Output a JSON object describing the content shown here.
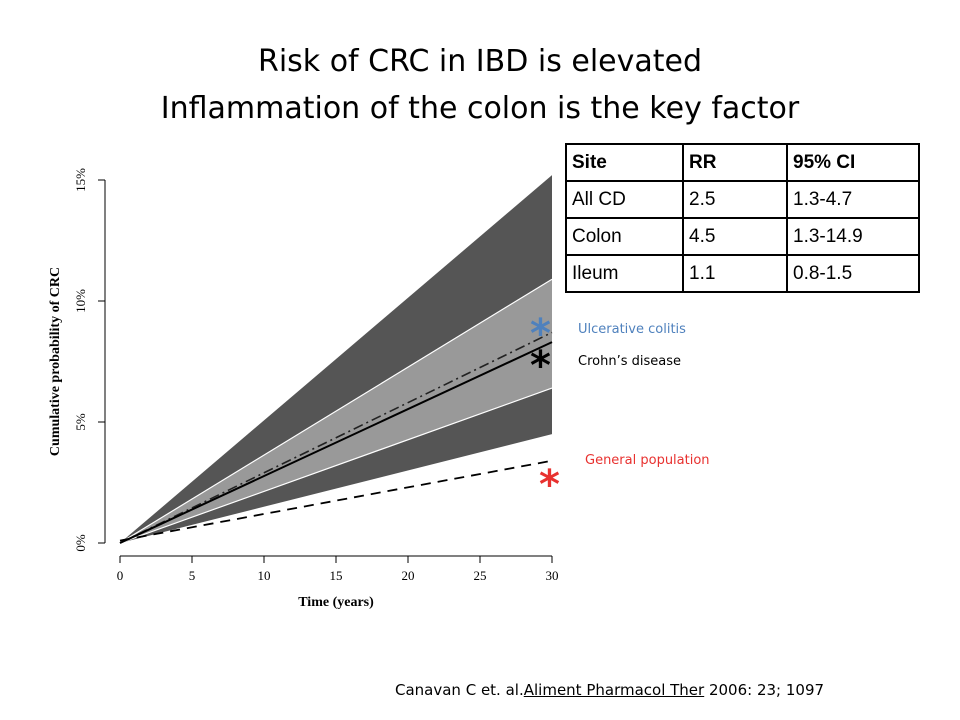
{
  "slide": {
    "title_line1": "Risk of CRC in IBD is elevated",
    "title_line2": "Inflammation of the colon is the key factor"
  },
  "table": {
    "headers": [
      "Site",
      "RR",
      "95% CI"
    ],
    "rows": [
      [
        "All CD",
        "2.5",
        "1.3-4.7"
      ],
      [
        "Colon",
        "4.5",
        "1.3-14.9"
      ],
      [
        "Ileum",
        "1.1",
        "0.8-1.5"
      ]
    ]
  },
  "legend": {
    "uc_label": "Ulcerative colitis",
    "cd_label": "Crohn’s disease",
    "gp_label": "General population",
    "star": "*"
  },
  "citation": {
    "prefix": "Canavan C et. al.",
    "journal": "Aliment Pharmacol Ther",
    "suffix": " 2006: 23; 1097"
  },
  "colors": {
    "outer_band": "#555555",
    "inner_band": "#999999",
    "ulcerative_colitis": "#4F81BD",
    "general_population": "#E8312F"
  },
  "chart_data": {
    "type": "area",
    "xlabel": "Time (years)",
    "ylabel": "Cumulative probability of CRC",
    "xlim": [
      0,
      30
    ],
    "ylim": [
      0,
      15
    ],
    "xticks": [
      0,
      5,
      10,
      15,
      20,
      25,
      30
    ],
    "yticks": [
      0,
      5,
      10,
      15
    ],
    "ytick_labels": [
      "0%",
      "5%",
      "10%",
      "15%"
    ],
    "x": [
      0,
      30
    ],
    "series": [
      {
        "role": "outer-band-upper",
        "values": [
          0,
          15.2
        ],
        "style": "fill"
      },
      {
        "role": "inner-band-upper",
        "values": [
          0,
          10.9
        ],
        "style": "fill"
      },
      {
        "role": "inner-band-lower",
        "values": [
          0,
          6.4
        ],
        "style": "fill"
      },
      {
        "role": "outer-band-lower",
        "values": [
          0,
          4.5
        ],
        "style": "fill"
      },
      {
        "name": "Ulcerative colitis",
        "values": [
          0,
          8.7
        ],
        "style": "dash-dot"
      },
      {
        "name": "Crohn’s disease",
        "values": [
          0,
          8.3
        ],
        "style": "solid"
      },
      {
        "name": "General population",
        "values": [
          0.1,
          3.4
        ],
        "style": "dashed"
      }
    ],
    "grid": false
  }
}
